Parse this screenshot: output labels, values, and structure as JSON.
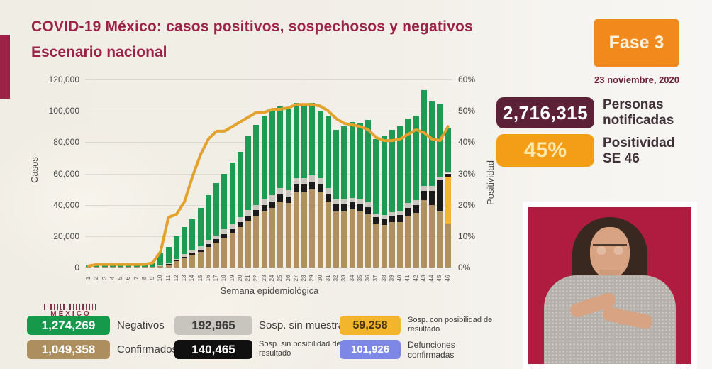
{
  "header": {
    "title_line1": "COVID-19 México: casos positivos, sospechosos y negativos",
    "title_line2": "Escenario nacional",
    "phase_badge": "Fase 3",
    "date": "23 noviembre, 2020"
  },
  "stats": [
    {
      "value": "2,716,315",
      "label_line1": "Personas",
      "label_line2": "notificadas",
      "bg": "#5c2137"
    },
    {
      "value": "45%",
      "label_line1": "Positividad",
      "label_line2": "SE 46",
      "bg": "#f49d17"
    }
  ],
  "watermark": "MÉXICO",
  "chart_data": {
    "type": "bar",
    "subtype": "stacked-bars-with-line",
    "xlabel": "Semana epidemiológica",
    "left_axis": {
      "label": "Casos",
      "tick_labels": [
        "0",
        "20,000",
        "40,000",
        "60,000",
        "80,000",
        "100,000",
        "120,000"
      ],
      "tick_values": [
        0,
        20000,
        40000,
        60000,
        80000,
        100000,
        120000
      ],
      "max": 120000
    },
    "right_axis": {
      "label": "Positividad",
      "tick_labels": [
        "0%",
        "10%",
        "20%",
        "30%",
        "40%",
        "50%",
        "60%"
      ],
      "tick_values": [
        0,
        10,
        20,
        30,
        40,
        50,
        60
      ],
      "max": 60
    },
    "categories": [
      "1",
      "2",
      "3",
      "4",
      "5",
      "6",
      "7",
      "8",
      "9",
      "10",
      "11",
      "12",
      "13",
      "14",
      "15",
      "16",
      "17",
      "18",
      "19",
      "20",
      "21",
      "22",
      "23",
      "24",
      "25",
      "26",
      "27",
      "28",
      "29",
      "30",
      "31",
      "32",
      "33",
      "34",
      "35",
      "36",
      "37",
      "38",
      "39",
      "40",
      "41",
      "42",
      "43",
      "44",
      "45",
      "46"
    ],
    "series": [
      {
        "name": "Confirmados",
        "color": "#b0905f",
        "values": [
          300,
          400,
          500,
          500,
          500,
          500,
          500,
          500,
          600,
          1000,
          2000,
          4000,
          6000,
          8000,
          10000,
          13000,
          16000,
          19000,
          22000,
          26000,
          30000,
          33000,
          36000,
          38000,
          42000,
          41000,
          48000,
          48000,
          50000,
          48000,
          42000,
          36000,
          36000,
          37000,
          36000,
          34000,
          28000,
          27000,
          29000,
          29000,
          33000,
          35000,
          43000,
          40000,
          36000,
          28000
        ]
      },
      {
        "name": "Sosp. con posibilidad de resultado",
        "color": "#f2b52b",
        "values": [
          0,
          0,
          0,
          0,
          0,
          0,
          0,
          0,
          0,
          0,
          0,
          0,
          0,
          0,
          0,
          0,
          0,
          0,
          0,
          0,
          0,
          0,
          0,
          0,
          0,
          0,
          0,
          0,
          0,
          0,
          0,
          0,
          0,
          0,
          0,
          0,
          0,
          0,
          0,
          0,
          0,
          0,
          0,
          0,
          0,
          30000
        ]
      },
      {
        "name": "Sosp. sin posibilidad de resultado",
        "color": "#1b1b1b",
        "values": [
          0,
          0,
          0,
          0,
          0,
          0,
          0,
          0,
          0,
          200,
          400,
          600,
          1000,
          1500,
          1500,
          2000,
          2000,
          2500,
          2500,
          3000,
          3000,
          3500,
          4000,
          4000,
          4500,
          4500,
          5000,
          5000,
          5000,
          5000,
          5000,
          4500,
          4500,
          4500,
          4500,
          4500,
          4000,
          4000,
          4000,
          4500,
          5000,
          5000,
          6000,
          9000,
          20000,
          2000
        ]
      },
      {
        "name": "Sosp. sin muestra",
        "color": "#cac7c1",
        "values": [
          0,
          0,
          0,
          0,
          0,
          0,
          0,
          0,
          0,
          300,
          500,
          1000,
          1500,
          2000,
          2000,
          2500,
          2500,
          3000,
          3000,
          3000,
          3500,
          3500,
          4000,
          4000,
          4000,
          4000,
          4000,
          4000,
          4000,
          4000,
          3500,
          3000,
          3000,
          3000,
          3000,
          3000,
          2500,
          2500,
          2500,
          2500,
          3000,
          3000,
          3000,
          3000,
          2000,
          1000
        ]
      },
      {
        "name": "Negativos",
        "color": "#1d9b53",
        "values": [
          1200,
          1600,
          1900,
          1900,
          1900,
          1900,
          1900,
          1900,
          2400,
          7500,
          10100,
          14400,
          17500,
          19500,
          24500,
          28500,
          33500,
          35500,
          39500,
          42000,
          47500,
          51000,
          53000,
          54000,
          52500,
          51500,
          48000,
          47000,
          46000,
          43000,
          46500,
          44500,
          46500,
          48500,
          48500,
          52500,
          47500,
          50500,
          52500,
          54000,
          54000,
          54000,
          61000,
          54000,
          46000,
          28000
        ]
      }
    ],
    "line_series": {
      "name": "Positividad",
      "color": "#e3a22d",
      "values_pct": [
        0.5,
        1,
        1,
        1,
        1,
        1,
        1,
        1,
        1.5,
        5,
        16,
        17,
        21,
        29,
        36,
        41,
        43.5,
        43.5,
        45,
        46.5,
        48,
        49.5,
        49.5,
        50.5,
        50.5,
        51,
        52,
        52,
        52,
        51.5,
        50,
        47.5,
        46,
        45.5,
        45,
        44,
        41.5,
        40.5,
        40.5,
        41,
        42.5,
        44,
        43,
        41,
        40.5,
        45
      ]
    }
  },
  "legend": {
    "items": [
      {
        "value": "1,274,269",
        "label": "Negativos",
        "bg": "#17994c",
        "fg": "#ffffff"
      },
      {
        "value": "192,965",
        "label": "Sosp. sin muestra",
        "bg": "#c8c5bf",
        "fg": "#3a3a3a"
      },
      {
        "value": "59,258",
        "label": "Sosp. con posibilidad de resultado",
        "bg": "#f2b52b",
        "fg": "#45350c"
      },
      {
        "value": "1,049,358",
        "label": "Confirmados",
        "bg": "#ac8e5f",
        "fg": "#ffffff"
      },
      {
        "value": "140,465",
        "label": "Sosp. sin posibilidad de resultado",
        "bg": "#101010",
        "fg": "#ffffff"
      },
      {
        "value": "101,926",
        "label": "Defunciones confirmadas",
        "bg": "#7d87e6",
        "fg": "#ffffff"
      }
    ]
  }
}
